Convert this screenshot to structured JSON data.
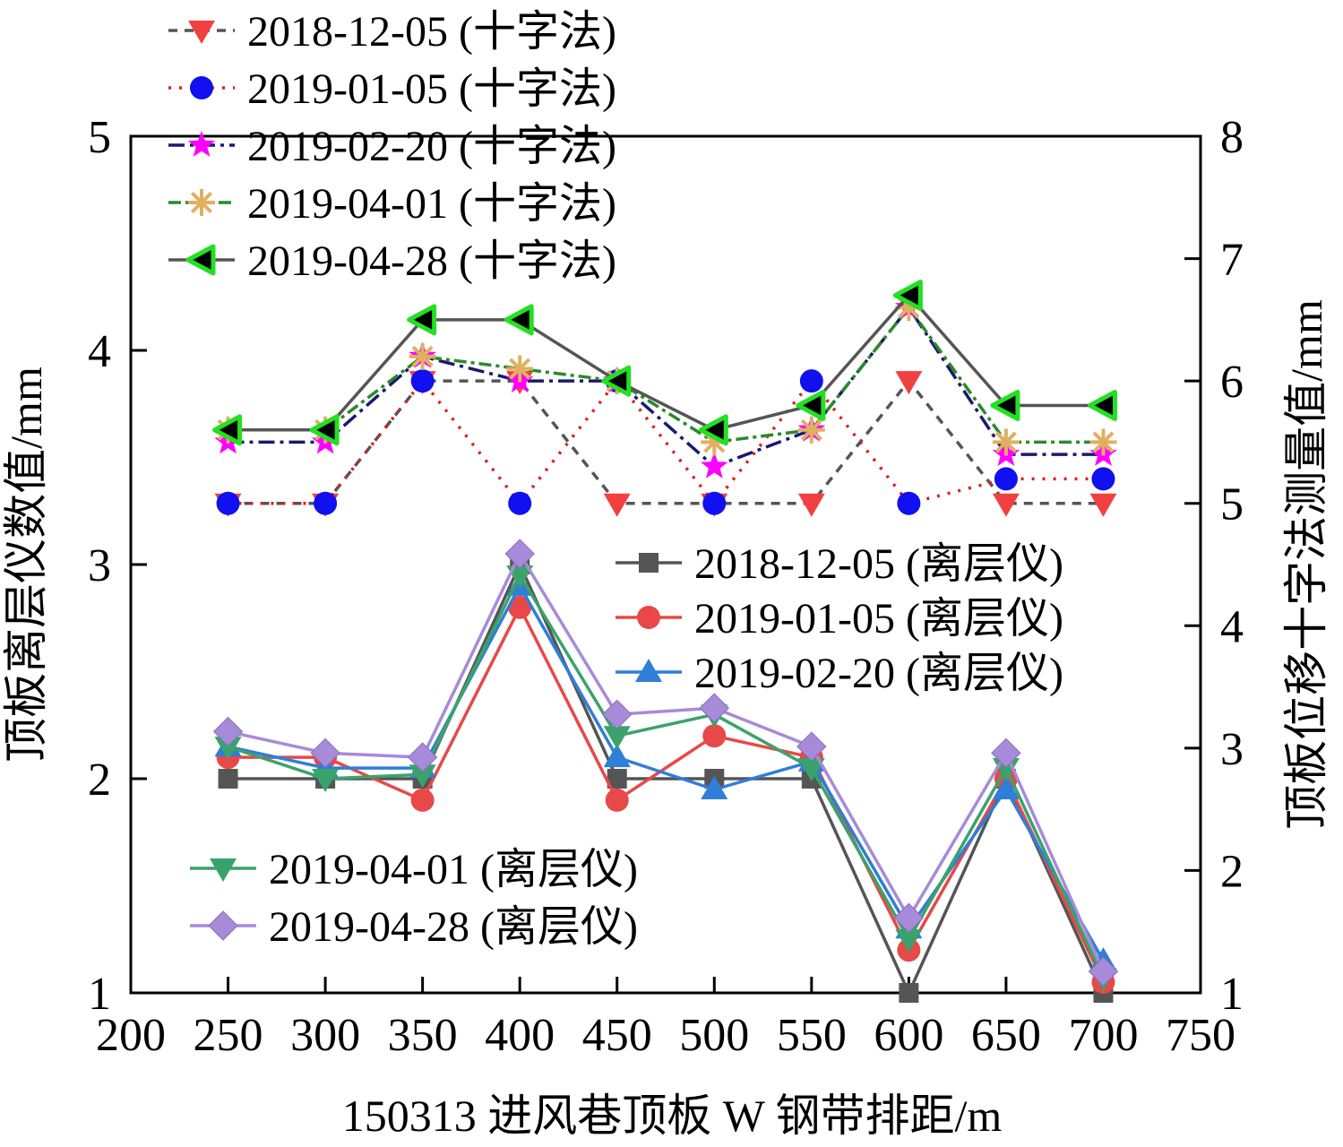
{
  "chart_data": {
    "type": "line",
    "xlabel": "150313 进风巷顶板 W 钢带排距/m",
    "ylabel_left": "顶板离层仪数值/mm",
    "ylabel_right": "顶板位移十字法测量值/mm",
    "xlim": [
      200,
      750
    ],
    "ylim_left": [
      1,
      5
    ],
    "ylim_right": [
      1,
      8
    ],
    "x_ticks": [
      "200",
      "250",
      "300",
      "350",
      "400",
      "450",
      "500",
      "550",
      "600",
      "650",
      "700",
      "750"
    ],
    "y_left_ticks": [
      "1",
      "2",
      "3",
      "4",
      "5"
    ],
    "y_right_ticks": [
      "1",
      "2",
      "3",
      "4",
      "5",
      "6",
      "7",
      "8"
    ],
    "x": [
      250,
      300,
      350,
      400,
      450,
      500,
      550,
      600,
      650,
      700
    ],
    "grid": false,
    "series_left": [
      {
        "name": "2018-12-05 (离层仪)",
        "color": "#555555",
        "marker": "square",
        "values": [
          2.0,
          2.0,
          2.0,
          3.0,
          2.0,
          2.0,
          2.0,
          1.0,
          2.0,
          1.0
        ]
      },
      {
        "name": "2019-01-05 (离层仪)",
        "color": "#e84848",
        "marker": "circle",
        "values": [
          2.1,
          2.1,
          1.9,
          2.8,
          1.9,
          2.2,
          2.1,
          1.2,
          2.0,
          1.05
        ]
      },
      {
        "name": "2019-02-20 (离层仪)",
        "color": "#2f7ed8",
        "marker": "triangle-up",
        "values": [
          2.15,
          2.05,
          2.05,
          2.9,
          2.1,
          1.95,
          2.08,
          1.3,
          1.95,
          1.15
        ]
      },
      {
        "name": "2019-04-01 (离层仪)",
        "color": "#3aa36b",
        "marker": "triangle-down",
        "values": [
          2.15,
          2.0,
          2.02,
          2.95,
          2.2,
          2.3,
          2.05,
          1.25,
          2.05,
          1.07
        ]
      },
      {
        "name": "2019-04-28 (离层仪)",
        "color": "#a78bd8",
        "marker": "diamond",
        "values": [
          2.22,
          2.12,
          2.1,
          3.05,
          2.3,
          2.33,
          2.15,
          1.35,
          2.12,
          1.1
        ]
      }
    ],
    "series_right": [
      {
        "name": "2018-12-05 (十字法)",
        "color": "#555555",
        "dash": "10,8",
        "marker": "triangle-down",
        "marker_color": "#f24040",
        "values": [
          5.0,
          5.0,
          6.0,
          6.0,
          5.0,
          5.0,
          5.0,
          6.0,
          5.0,
          5.0
        ]
      },
      {
        "name": "2019-01-05 (十字法)",
        "color": "#e02020",
        "dash": "3,9",
        "marker": "circle",
        "marker_color": "#1010f0",
        "values": [
          5.0,
          5.0,
          6.0,
          5.0,
          6.0,
          5.0,
          6.0,
          5.0,
          5.2,
          5.2
        ]
      },
      {
        "name": "2019-02-20 (十字法)",
        "color": "#1a1a70",
        "dash": "18,6,4,6",
        "marker": "star",
        "marker_color": "#ff00ff",
        "values": [
          5.5,
          5.5,
          6.2,
          6.0,
          6.0,
          5.3,
          5.6,
          6.6,
          5.4,
          5.4
        ]
      },
      {
        "name": "2019-04-01 (十字法)",
        "color": "#2a8a2a",
        "dash": "14,5,4,5",
        "marker": "asterisk",
        "marker_color": "#e0b060",
        "values": [
          5.6,
          5.6,
          6.2,
          6.1,
          6.0,
          5.5,
          5.6,
          6.6,
          5.5,
          5.5
        ]
      },
      {
        "name": "2019-04-28 (十字法)",
        "color": "#555555",
        "dash": "",
        "marker": "triangle-left",
        "marker_color": "#22e022",
        "values": [
          5.6,
          5.6,
          6.5,
          6.5,
          6.0,
          5.6,
          5.8,
          6.7,
          5.8,
          5.8
        ]
      }
    ]
  }
}
